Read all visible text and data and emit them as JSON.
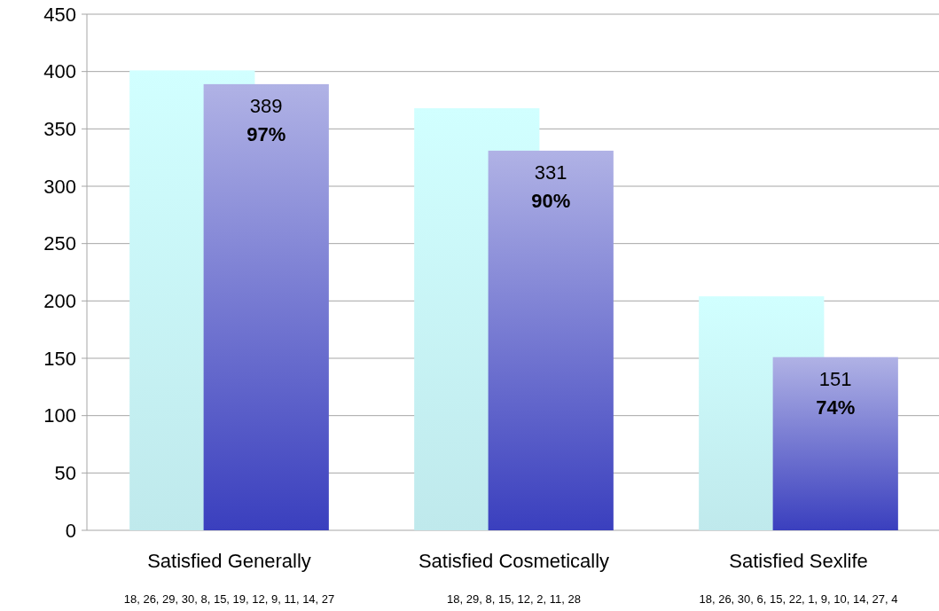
{
  "chart_data": {
    "type": "bar",
    "categories": [
      "Satisfied Generally",
      "Satisfied Cosmetically",
      "Satisfied Sexlife"
    ],
    "series": [
      {
        "color": "#bfe9ec",
        "values": [
          401,
          368,
          204
        ]
      },
      {
        "color": "#3a3fbe",
        "values": [
          389,
          331,
          151
        ],
        "value_labels": [
          "389\n97%",
          "331\n90%",
          "151\n74%"
        ]
      }
    ],
    "ylim": [
      0,
      450
    ],
    "yticks": [
      0,
      50,
      100,
      150,
      200,
      250,
      300,
      350,
      400,
      450
    ],
    "grid": "y",
    "annotations": [
      "18, 26, 29, 30, 8, 15, 19, 12, 9, 11, 14, 27",
      "18, 29, 8, 15, 12, 2, 11, 28",
      "18, 26, 30, 6, 15, 22, 1, 9, 10, 14, 27, 4"
    ]
  }
}
